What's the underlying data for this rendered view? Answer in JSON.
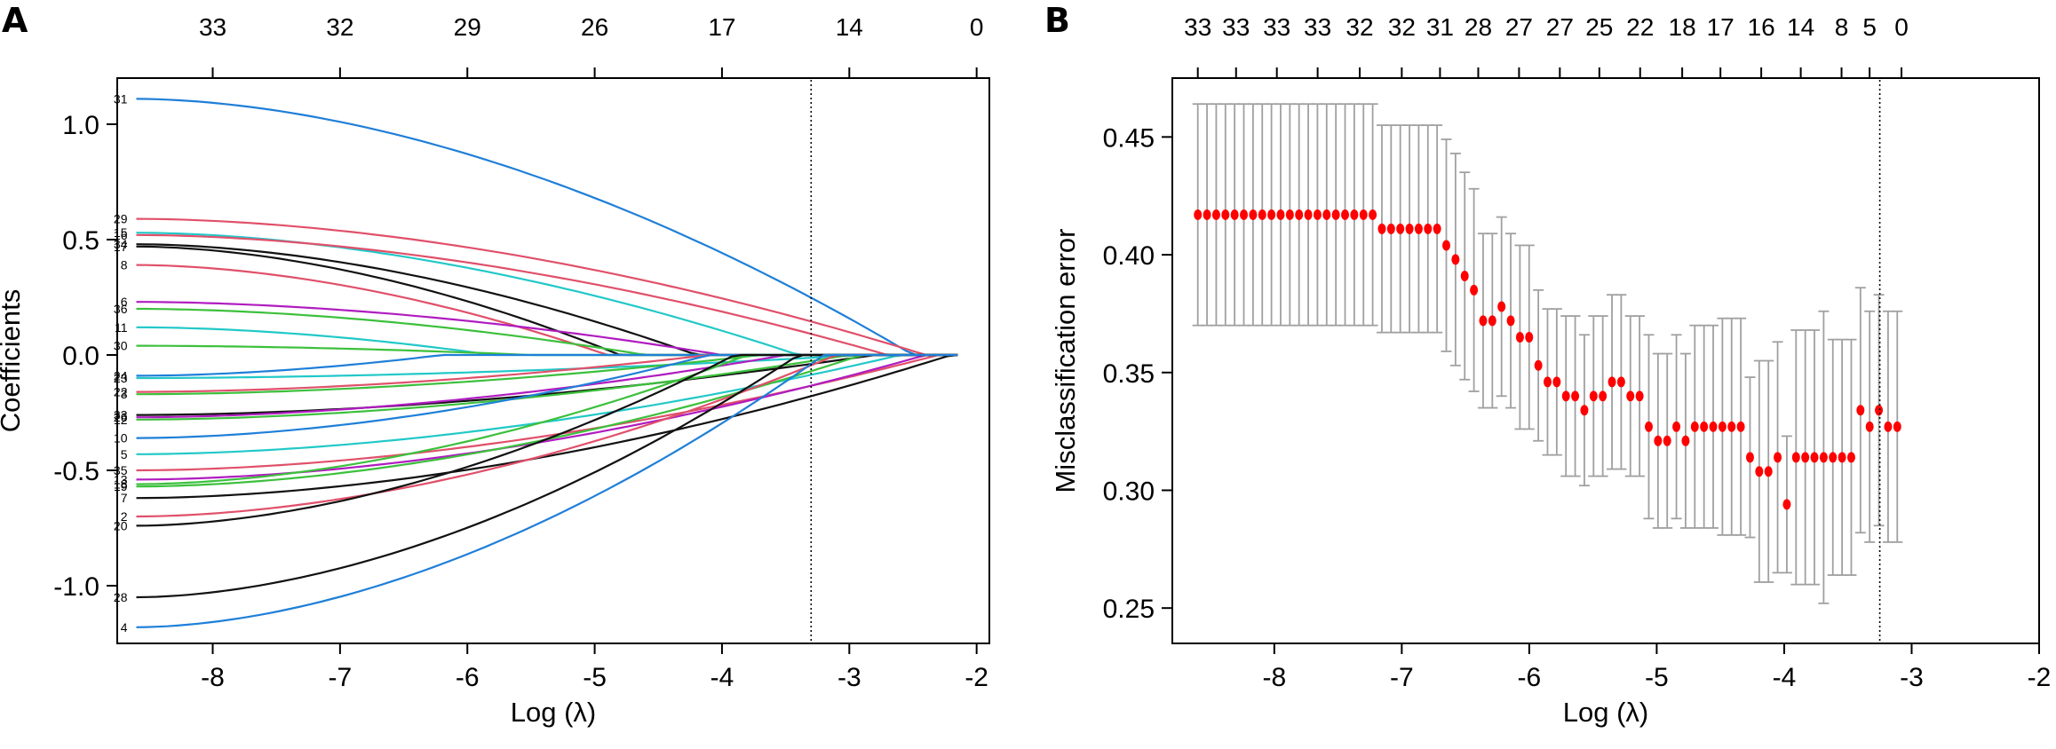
{
  "panels": [
    {
      "letter": "A"
    },
    {
      "letter": "B"
    }
  ],
  "chart_data": [
    {
      "type": "line",
      "panel": "A",
      "xlabel": "Log (λ)",
      "ylabel": "Coefficients",
      "xlim": [
        -8.75,
        -1.9
      ],
      "ylim": [
        -1.25,
        1.2
      ],
      "xticks": [
        -8,
        -7,
        -6,
        -5,
        -4,
        -3,
        -2
      ],
      "yticks": [
        -1.0,
        -0.5,
        0.0,
        0.5,
        1.0
      ],
      "ytick_labels": [
        "-1.0",
        "-0.5",
        "0.0",
        "0.5",
        "1.0"
      ],
      "top_axis": {
        "positions": [
          -8,
          -7,
          -6,
          -5,
          -4,
          -3,
          -2
        ],
        "labels": [
          "33",
          "32",
          "29",
          "26",
          "17",
          "14",
          "0"
        ]
      },
      "x_start": -8.6,
      "x_end": -2.15,
      "vline": -3.3,
      "grid": false,
      "legend": "none",
      "series": [
        {
          "label": "31",
          "start": 1.11,
          "zero_at": -2.5,
          "color": "#1f7fd8"
        },
        {
          "label": "29",
          "start": 0.59,
          "zero_at": -2.4,
          "color": "#e0506a"
        },
        {
          "label": "15",
          "start": 0.53,
          "zero_at": -3.4,
          "color": "#22c8c8"
        },
        {
          "label": "16",
          "start": 0.52,
          "zero_at": -2.7,
          "color": "#e0506a"
        },
        {
          "label": "34",
          "start": 0.48,
          "zero_at": -4.2,
          "color": "#111111"
        },
        {
          "label": "17",
          "start": 0.47,
          "zero_at": -4.8,
          "color": "#111111"
        },
        {
          "label": "8",
          "start": 0.39,
          "zero_at": -4.9,
          "color": "#e0506a"
        },
        {
          "label": "6",
          "start": 0.23,
          "zero_at": -4.0,
          "color": "#b01cc0"
        },
        {
          "label": "36",
          "start": 0.2,
          "zero_at": -4.6,
          "color": "#3cc03c"
        },
        {
          "label": "11",
          "start": 0.12,
          "zero_at": -5.8,
          "color": "#22c8c8"
        },
        {
          "label": "30",
          "start": 0.04,
          "zero_at": -5.5,
          "color": "#3cc03c"
        },
        {
          "label": "24",
          "start": -0.09,
          "zero_at": -6.2,
          "color": "#1f7fd8"
        },
        {
          "label": "23",
          "start": -0.1,
          "zero_at": -2.9,
          "color": "#22c8c8"
        },
        {
          "label": "22",
          "start": -0.16,
          "zero_at": -4.1,
          "color": "#e0506a"
        },
        {
          "label": "3",
          "start": -0.17,
          "zero_at": -3.7,
          "color": "#3cc03c"
        },
        {
          "label": "33",
          "start": -0.26,
          "zero_at": -2.8,
          "color": "#111111"
        },
        {
          "label": "26",
          "start": -0.27,
          "zero_at": -3.5,
          "color": "#b01cc0"
        },
        {
          "label": "12",
          "start": -0.28,
          "zero_at": -3.0,
          "color": "#3cc03c"
        },
        {
          "label": "10",
          "start": -0.36,
          "zero_at": -4.1,
          "color": "#1f7fd8"
        },
        {
          "label": "5",
          "start": -0.43,
          "zero_at": -2.6,
          "color": "#22c8c8"
        },
        {
          "label": "35",
          "start": -0.5,
          "zero_at": -2.3,
          "color": "#e0506a"
        },
        {
          "label": "13",
          "start": -0.54,
          "zero_at": -2.4,
          "color": "#b01cc0"
        },
        {
          "label": "18",
          "start": -0.56,
          "zero_at": -3.8,
          "color": "#3cc03c"
        },
        {
          "label": "19",
          "start": -0.57,
          "zero_at": -2.9,
          "color": "#3cc03c"
        },
        {
          "label": "7",
          "start": -0.62,
          "zero_at": -2.2,
          "color": "#111111"
        },
        {
          "label": "2",
          "start": -0.7,
          "zero_at": -3.1,
          "color": "#e0506a"
        },
        {
          "label": "20",
          "start": -0.74,
          "zero_at": -3.9,
          "color": "#111111"
        },
        {
          "label": "28",
          "start": -1.05,
          "zero_at": -3.4,
          "color": "#111111"
        },
        {
          "label": "4",
          "start": -1.18,
          "zero_at": -3.2,
          "color": "#1f7fd8"
        }
      ]
    },
    {
      "type": "scatter",
      "panel": "B",
      "xlabel": "Log (λ)",
      "ylabel": "Misclassification error",
      "xlim": [
        -8.8,
        -2.0
      ],
      "ylim": [
        0.235,
        0.475
      ],
      "xticks": [
        -8,
        -7,
        -6,
        -5,
        -4,
        -3,
        -2
      ],
      "yticks": [
        0.25,
        0.3,
        0.35,
        0.4,
        0.45
      ],
      "ytick_labels": [
        "0.25",
        "0.30",
        "0.35",
        "0.40",
        "0.45"
      ],
      "top_axis": {
        "positions": [
          -8.6,
          -8.3,
          -7.98,
          -7.66,
          -7.33,
          -7.0,
          -6.7,
          -6.4,
          -6.08,
          -5.76,
          -5.45,
          -5.13,
          -4.8,
          -4.5,
          -4.18,
          -3.87,
          -3.55,
          -3.33,
          -3.08,
          -2.83,
          -2.6
        ],
        "labels": [
          "33",
          "33",
          "33",
          "33",
          "32",
          "32",
          "31",
          "28",
          "27",
          "27",
          "25",
          "22",
          "18",
          "17",
          "16",
          "14",
          "8",
          "5",
          "0",
          "",
          ""
        ]
      },
      "vline": -3.25,
      "point_color": "#ff0000",
      "errorbar_color": "#a0a0a0",
      "x_start": -8.6,
      "x_step": 0.0722,
      "values": [
        0.417,
        0.417,
        0.417,
        0.417,
        0.417,
        0.417,
        0.417,
        0.417,
        0.417,
        0.417,
        0.417,
        0.417,
        0.417,
        0.417,
        0.417,
        0.417,
        0.417,
        0.417,
        0.417,
        0.417,
        0.411,
        0.411,
        0.411,
        0.411,
        0.411,
        0.411,
        0.411,
        0.404,
        0.398,
        0.391,
        0.385,
        0.372,
        0.372,
        0.378,
        0.372,
        0.365,
        0.365,
        0.353,
        0.346,
        0.346,
        0.34,
        0.34,
        0.334,
        0.34,
        0.34,
        0.346,
        0.346,
        0.34,
        0.34,
        0.327,
        0.321,
        0.321,
        0.327,
        0.321,
        0.327,
        0.327,
        0.327,
        0.327,
        0.327,
        0.327,
        0.314,
        0.308,
        0.308,
        0.314,
        0.294,
        0.314,
        0.314,
        0.314,
        0.314,
        0.314,
        0.314,
        0.314,
        0.334,
        0.327,
        0.334,
        0.327,
        0.327
      ],
      "errors": [
        0.047,
        0.047,
        0.047,
        0.047,
        0.047,
        0.047,
        0.047,
        0.047,
        0.047,
        0.047,
        0.047,
        0.047,
        0.047,
        0.047,
        0.047,
        0.047,
        0.047,
        0.047,
        0.047,
        0.047,
        0.044,
        0.044,
        0.044,
        0.044,
        0.044,
        0.044,
        0.044,
        0.045,
        0.045,
        0.044,
        0.043,
        0.037,
        0.037,
        0.038,
        0.037,
        0.039,
        0.039,
        0.032,
        0.031,
        0.031,
        0.034,
        0.034,
        0.032,
        0.034,
        0.034,
        0.037,
        0.037,
        0.034,
        0.034,
        0.039,
        0.037,
        0.037,
        0.039,
        0.037,
        0.043,
        0.043,
        0.043,
        0.046,
        0.046,
        0.046,
        0.034,
        0.047,
        0.047,
        0.049,
        0.029,
        0.054,
        0.054,
        0.054,
        0.062,
        0.05,
        0.05,
        0.05,
        0.052,
        0.049,
        0.049,
        0.049,
        0.049
      ]
    }
  ]
}
